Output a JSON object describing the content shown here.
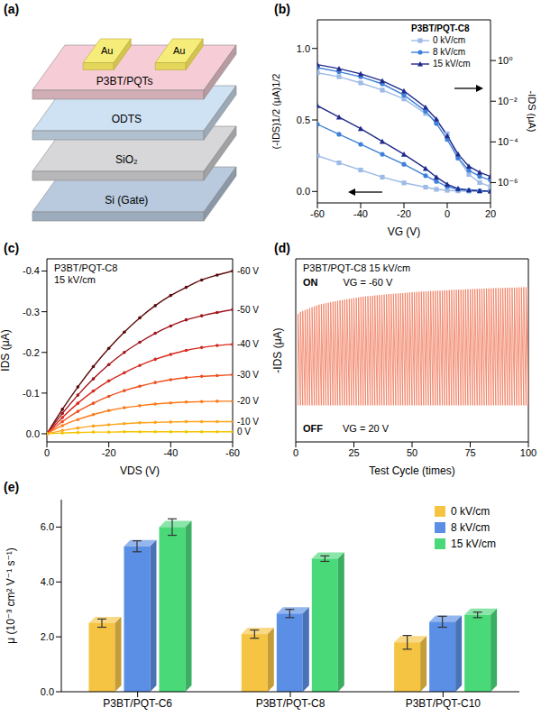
{
  "diagram": {
    "panel_label": "(a)",
    "electrodes": [
      "Au",
      "Au"
    ],
    "layers": [
      "P3BT/PQTs",
      "ODTS",
      "SiO₂",
      "Si (Gate)"
    ]
  },
  "chart_data": [
    {
      "panel_label": "(b)",
      "type": "line",
      "annotation": "P3BT/PQT-C8",
      "x_label": "VG (V)",
      "y_label": "(-IDS)1/2 (μA)1/2",
      "y2_label": "-IDS (μA)",
      "x": [
        -60,
        -50,
        -40,
        -30,
        -20,
        -10,
        -5,
        0,
        5,
        10,
        15,
        20
      ],
      "xlim": [
        -60,
        20
      ],
      "xticks": [
        -60,
        -40,
        -20,
        0,
        20
      ],
      "ylim": [
        -0.08,
        1.2
      ],
      "yticks": [
        {
          "value": 0,
          "label": "0.0"
        },
        0.5,
        {
          "value": 1,
          "label": "1.0"
        }
      ],
      "y2lim": [
        1e-07,
        100
      ],
      "y2ticks": [
        {
          "value": 1e-06,
          "label": "10⁻⁶"
        },
        {
          "value": 0.0001,
          "label": "10⁻⁴"
        },
        {
          "value": 0.01,
          "label": "10⁻²"
        },
        {
          "value": 1,
          "label": "10⁰"
        }
      ],
      "log": "y2",
      "legend": "upper right",
      "series": [
        {
          "name": "0 kV/cm",
          "color": "#9dbbe6",
          "marker": "square",
          "axis": "y",
          "values": [
            0.25,
            0.2,
            0.15,
            0.1,
            0.06,
            0.03,
            0.015,
            0.008,
            0.004,
            0.002,
            0.001,
            0.001
          ]
        },
        {
          "name": "8 kV/cm",
          "color": "#3f80d8",
          "marker": "circle",
          "axis": "y",
          "values": [
            0.47,
            0.4,
            0.33,
            0.26,
            0.19,
            0.11,
            0.07,
            0.035,
            0.015,
            0.008,
            0.004,
            0.002
          ]
        },
        {
          "name": "15 kV/cm",
          "color": "#1f2a8a",
          "marker": "triangle",
          "axis": "y",
          "values": [
            0.6,
            0.52,
            0.44,
            0.35,
            0.26,
            0.16,
            0.1,
            0.05,
            0.02,
            0.01,
            0.005,
            0.003
          ]
        },
        {
          "name": "0 kV/cm",
          "color": "#9dbbe6",
          "marker": "square",
          "axis": "y2",
          "values": [
            0.25,
            0.16,
            0.079,
            0.035,
            0.013,
            0.0025,
            0.001,
            0.00025,
            1.6e-05,
            2.5e-06,
            1e-06,
            6.3e-07
          ]
        },
        {
          "name": "8 kV/cm",
          "color": "#3f80d8",
          "marker": "circle",
          "axis": "y2",
          "values": [
            0.45,
            0.28,
            0.16,
            0.071,
            0.02,
            0.0032,
            0.0008,
            0.00013,
            1.6e-05,
            4e-06,
            2e-06,
            1.3e-06
          ]
        },
        {
          "name": "15 kV/cm",
          "color": "#1f2a8a",
          "marker": "triangle",
          "axis": "y2",
          "values": [
            0.63,
            0.4,
            0.22,
            0.1,
            0.032,
            0.005,
            0.0013,
            0.0002,
            2.5e-05,
            6.3e-06,
            3.2e-06,
            2e-06
          ]
        }
      ]
    },
    {
      "panel_label": "(c)",
      "type": "line",
      "annotation": [
        "P3BT/PQT-C8",
        "15 kV/cm"
      ],
      "x_label": "VDS (V)",
      "y_label": "IDS (μA)",
      "marker": "circle",
      "x": [
        0,
        -5,
        -10,
        -15,
        -20,
        -25,
        -30,
        -35,
        -40,
        -45,
        -50,
        -55,
        -60
      ],
      "xlim": [
        0,
        -60
      ],
      "xticks": [
        0,
        -20,
        -40,
        -60
      ],
      "ylim": [
        0.02,
        -0.43
      ],
      "yticks": [
        {
          "value": 0,
          "label": "0.0"
        },
        -0.1,
        -0.2,
        -0.3,
        -0.4
      ],
      "series": [
        {
          "name": "-60 V",
          "color": "#5a0a0a",
          "values": [
            0,
            -0.06,
            -0.115,
            -0.165,
            -0.21,
            -0.25,
            -0.285,
            -0.315,
            -0.34,
            -0.36,
            -0.378,
            -0.39,
            -0.4
          ]
        },
        {
          "name": "-50 V",
          "color": "#a0141a",
          "values": [
            0,
            -0.05,
            -0.095,
            -0.135,
            -0.17,
            -0.2,
            -0.225,
            -0.247,
            -0.265,
            -0.28,
            -0.29,
            -0.298,
            -0.305
          ]
        },
        {
          "name": "-40 V",
          "color": "#d62a1e",
          "values": [
            0,
            -0.04,
            -0.075,
            -0.105,
            -0.13,
            -0.15,
            -0.168,
            -0.183,
            -0.195,
            -0.205,
            -0.212,
            -0.217,
            -0.22
          ]
        },
        {
          "name": "-30 V",
          "color": "#f0501e",
          "values": [
            0,
            -0.03,
            -0.055,
            -0.075,
            -0.092,
            -0.106,
            -0.117,
            -0.126,
            -0.133,
            -0.138,
            -0.141,
            -0.143,
            -0.145
          ]
        },
        {
          "name": "-20 V",
          "color": "#ff7a1a",
          "values": [
            0,
            -0.02,
            -0.035,
            -0.047,
            -0.057,
            -0.064,
            -0.069,
            -0.073,
            -0.076,
            -0.078,
            -0.079,
            -0.08,
            -0.08
          ]
        },
        {
          "name": "-10 V",
          "color": "#ffa31a",
          "values": [
            0,
            -0.008,
            -0.014,
            -0.019,
            -0.022,
            -0.025,
            -0.027,
            -0.028,
            -0.029,
            -0.03,
            -0.03,
            -0.03,
            -0.03
          ]
        },
        {
          "name": "0 V",
          "color": "#f5c400",
          "values": [
            0,
            -0.002,
            -0.003,
            -0.004,
            -0.004,
            -0.005,
            -0.005,
            -0.005,
            -0.005,
            -0.005,
            -0.005,
            -0.005,
            -0.005
          ]
        }
      ]
    },
    {
      "panel_label": "(d)",
      "type": "line",
      "annotation": "P3BT/PQT-C8 15 kV/cm",
      "x_label": "Test Cycle (times)",
      "y_label": "-IDS (μA)",
      "color": "#f0785a",
      "x": [
        1,
        2,
        3,
        4,
        5,
        6,
        7,
        8,
        9,
        10,
        11,
        12,
        13,
        14,
        15,
        16,
        17,
        18,
        19,
        20,
        21,
        22,
        23,
        24,
        25,
        26,
        27,
        28,
        29,
        30,
        31,
        32,
        33,
        34,
        35,
        36,
        37,
        38,
        39,
        40,
        41,
        42,
        43,
        44,
        45,
        46,
        47,
        48,
        49,
        50,
        51,
        52,
        53,
        54,
        55,
        56,
        57,
        58,
        59,
        60,
        61,
        62,
        63,
        64,
        65,
        66,
        67,
        68,
        69,
        70,
        71,
        72,
        73,
        74,
        75,
        76,
        77,
        78,
        79,
        80,
        81,
        82,
        83,
        84,
        85,
        86,
        87,
        88,
        89,
        90,
        91,
        92,
        93,
        94,
        95,
        96,
        97,
        98,
        99,
        100
      ],
      "xlim": [
        0,
        100
      ],
      "xticks": [
        0,
        25,
        50,
        75,
        100
      ],
      "ylim": [
        0,
        1
      ],
      "tick_labels": "x",
      "series": [
        {
          "name": "ON",
          "condition": "VG = -60 V",
          "values": [
            0.7,
            0.71,
            0.715,
            0.72,
            0.725,
            0.73,
            0.735,
            0.74,
            0.745,
            0.75,
            0.752,
            0.755,
            0.758,
            0.76,
            0.763,
            0.766,
            0.768,
            0.77,
            0.773,
            0.775,
            0.777,
            0.779,
            0.781,
            0.783,
            0.785,
            0.787,
            0.789,
            0.791,
            0.793,
            0.795,
            0.796,
            0.797,
            0.798,
            0.8,
            0.801,
            0.802,
            0.803,
            0.805,
            0.806,
            0.807,
            0.808,
            0.809,
            0.81,
            0.811,
            0.812,
            0.813,
            0.814,
            0.815,
            0.816,
            0.817,
            0.818,
            0.819,
            0.82,
            0.821,
            0.821,
            0.822,
            0.823,
            0.824,
            0.824,
            0.825,
            0.826,
            0.826,
            0.827,
            0.828,
            0.828,
            0.829,
            0.83,
            0.83,
            0.831,
            0.831,
            0.832,
            0.832,
            0.833,
            0.834,
            0.834,
            0.835,
            0.835,
            0.836,
            0.836,
            0.837,
            0.837,
            0.838,
            0.838,
            0.839,
            0.839,
            0.84,
            0.84,
            0.84,
            0.841,
            0.841,
            0.842,
            0.842,
            0.843,
            0.843,
            0.843,
            0.844,
            0.844,
            0.845,
            0.845,
            0.845
          ]
        },
        {
          "name": "OFF",
          "condition": "VG = 20 V",
          "values": [
            0.2,
            0.2,
            0.2,
            0.2,
            0.2,
            0.2,
            0.2,
            0.2,
            0.2,
            0.2,
            0.2,
            0.2,
            0.2,
            0.2,
            0.2,
            0.2,
            0.2,
            0.2,
            0.2,
            0.2,
            0.2,
            0.2,
            0.2,
            0.2,
            0.2,
            0.2,
            0.2,
            0.2,
            0.2,
            0.2,
            0.2,
            0.2,
            0.2,
            0.2,
            0.2,
            0.2,
            0.2,
            0.2,
            0.2,
            0.2,
            0.2,
            0.2,
            0.2,
            0.2,
            0.2,
            0.2,
            0.2,
            0.2,
            0.2,
            0.2,
            0.2,
            0.2,
            0.2,
            0.2,
            0.2,
            0.2,
            0.2,
            0.2,
            0.2,
            0.2,
            0.2,
            0.2,
            0.2,
            0.2,
            0.2,
            0.2,
            0.2,
            0.2,
            0.2,
            0.2,
            0.2,
            0.2,
            0.2,
            0.2,
            0.2,
            0.2,
            0.2,
            0.2,
            0.2,
            0.2,
            0.2,
            0.2,
            0.2,
            0.2,
            0.2,
            0.2,
            0.2,
            0.2,
            0.2,
            0.2,
            0.2,
            0.2,
            0.2,
            0.2,
            0.2,
            0.2,
            0.2,
            0.2,
            0.2,
            0.2
          ]
        }
      ]
    },
    {
      "panel_label": "(e)",
      "type": "bar",
      "y_label": "μ (10⁻³ cm² V⁻¹ s⁻¹)",
      "categories": [
        "P3BT/PQT-C6",
        "P3BT/PQT-C8",
        "P3BT/PQT-C10"
      ],
      "ylim": [
        0,
        7
      ],
      "yticks": [
        {
          "value": 0,
          "label": "0.0"
        },
        {
          "value": 2,
          "label": "2.0"
        },
        {
          "value": 4,
          "label": "4.0"
        },
        {
          "value": 6,
          "label": "6.0"
        }
      ],
      "legend": "upper right",
      "series": [
        {
          "name": "0 kV/cm",
          "color": "#f6c443",
          "values": [
            2.5,
            2.1,
            1.8
          ],
          "errors": [
            0.15,
            0.15,
            0.25
          ]
        },
        {
          "name": "8 kV/cm",
          "color": "#5b8fe5",
          "values": [
            5.3,
            2.85,
            2.55
          ],
          "errors": [
            0.2,
            0.15,
            0.2
          ]
        },
        {
          "name": "15 kV/cm",
          "color": "#49d979",
          "values": [
            6.0,
            4.85,
            2.8
          ],
          "errors": [
            0.3,
            0.1,
            0.1
          ]
        }
      ]
    }
  ]
}
